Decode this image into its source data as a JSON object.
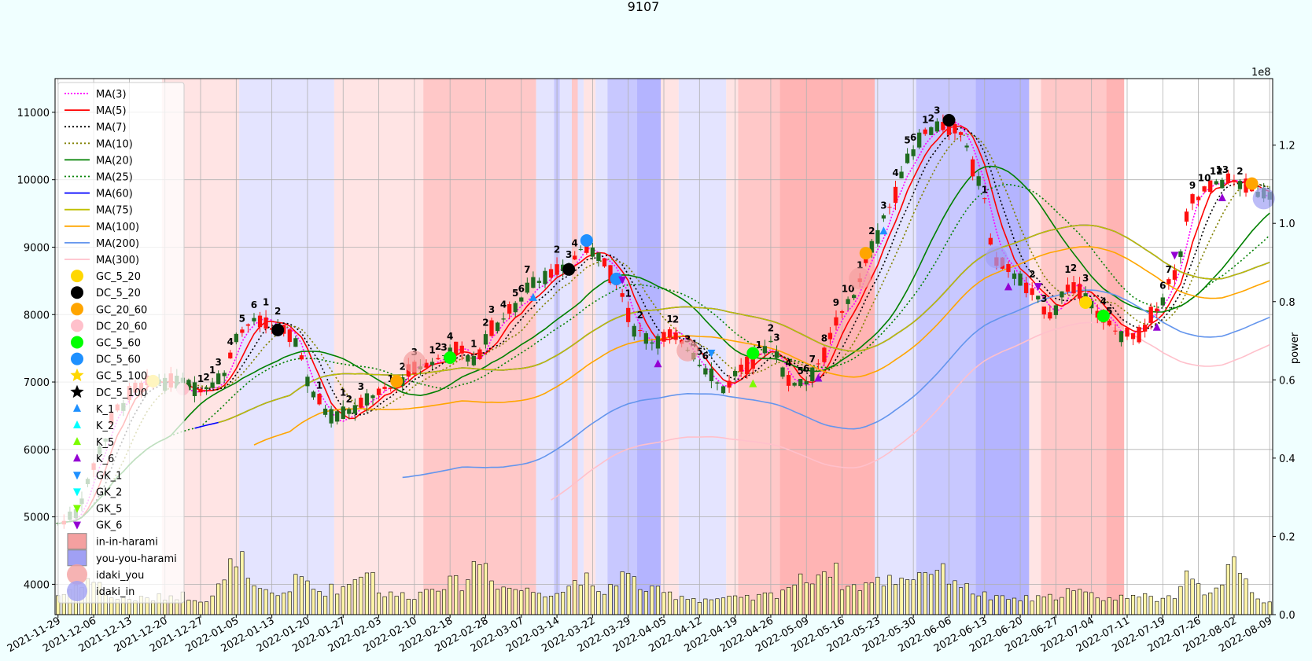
{
  "chart_data": {
    "type": "candlestick",
    "title": "9107",
    "ylabel_right": "power",
    "right_axis_multiplier": "1e8",
    "ylim": [
      3550,
      11500
    ],
    "ylim_right": [
      0,
      1.37
    ],
    "yticks": [
      "4000",
      "5000",
      "6000",
      "7000",
      "8000",
      "9000",
      "10000",
      "11000"
    ],
    "yticks_right": [
      "0.0",
      "0.2",
      "0.4",
      "0.6",
      "0.8",
      "1.0",
      "1.2"
    ],
    "x_labels": [
      "2021-11-29",
      "2021-12-06",
      "2021-12-13",
      "2021-12-20",
      "2021-12-27",
      "2022-01-05",
      "2022-01-13",
      "2022-01-20",
      "2022-01-27",
      "2022-02-03",
      "2022-02-10",
      "2022-02-18",
      "2022-02-28",
      "2022-03-07",
      "2022-03-14",
      "2022-03-22",
      "2022-03-29",
      "2022-04-05",
      "2022-04-12",
      "2022-04-19",
      "2022-04-26",
      "2022-05-09",
      "2022-05-16",
      "2022-05-23",
      "2022-05-30",
      "2022-06-06",
      "2022-06-13",
      "2022-06-20",
      "2022-06-27",
      "2022-07-04",
      "2022-07-11",
      "2022-07-19",
      "2022-07-26",
      "2022-08-02",
      "2022-08-09"
    ],
    "close_anchors": [
      [
        0,
        4900
      ],
      [
        3,
        5050
      ],
      [
        5,
        5500
      ],
      [
        7,
        6000
      ],
      [
        10,
        6600
      ],
      [
        13,
        6900
      ],
      [
        16,
        7000
      ],
      [
        20,
        7000
      ],
      [
        24,
        6900
      ],
      [
        28,
        7100
      ],
      [
        30,
        7700
      ],
      [
        33,
        7900
      ],
      [
        37,
        7800
      ],
      [
        40,
        7600
      ],
      [
        43,
        6800
      ],
      [
        46,
        6500
      ],
      [
        50,
        6600
      ],
      [
        53,
        6800
      ],
      [
        56,
        6900
      ],
      [
        60,
        7200
      ],
      [
        63,
        7300
      ],
      [
        67,
        7500
      ],
      [
        70,
        7300
      ],
      [
        73,
        7800
      ],
      [
        77,
        8100
      ],
      [
        80,
        8500
      ],
      [
        83,
        8600
      ],
      [
        86,
        8700
      ],
      [
        88,
        9000
      ],
      [
        91,
        8900
      ],
      [
        94,
        8500
      ],
      [
        97,
        7800
      ],
      [
        100,
        7600
      ],
      [
        103,
        7700
      ],
      [
        106,
        7500
      ],
      [
        109,
        7200
      ],
      [
        112,
        6900
      ],
      [
        115,
        7200
      ],
      [
        117,
        7300
      ],
      [
        120,
        7600
      ],
      [
        123,
        7000
      ],
      [
        126,
        7000
      ],
      [
        129,
        7400
      ],
      [
        131,
        7900
      ],
      [
        134,
        8300
      ],
      [
        137,
        9000
      ],
      [
        140,
        9600
      ],
      [
        143,
        10300
      ],
      [
        146,
        10700
      ],
      [
        149,
        10800
      ],
      [
        152,
        10700
      ],
      [
        155,
        10000
      ],
      [
        158,
        8800
      ],
      [
        161,
        8600
      ],
      [
        164,
        8300
      ],
      [
        167,
        8000
      ],
      [
        170,
        8400
      ],
      [
        173,
        8300
      ],
      [
        176,
        7900
      ],
      [
        179,
        7700
      ],
      [
        182,
        7700
      ],
      [
        185,
        8100
      ],
      [
        188,
        8600
      ],
      [
        191,
        9700
      ],
      [
        194,
        9900
      ],
      [
        197,
        10000
      ],
      [
        200,
        9900
      ],
      [
        203,
        9800
      ]
    ],
    "volume_anchors": [
      [
        0,
        0.05
      ],
      [
        5,
        0.09
      ],
      [
        10,
        0.04
      ],
      [
        15,
        0.04
      ],
      [
        20,
        0.05
      ],
      [
        25,
        0.04
      ],
      [
        28,
        0.08
      ],
      [
        30,
        0.16
      ],
      [
        33,
        0.06
      ],
      [
        37,
        0.05
      ],
      [
        41,
        0.09
      ],
      [
        44,
        0.06
      ],
      [
        48,
        0.07
      ],
      [
        52,
        0.12
      ],
      [
        55,
        0.05
      ],
      [
        60,
        0.05
      ],
      [
        64,
        0.08
      ],
      [
        68,
        0.08
      ],
      [
        71,
        0.14
      ],
      [
        75,
        0.07
      ],
      [
        80,
        0.06
      ],
      [
        85,
        0.06
      ],
      [
        88,
        0.1
      ],
      [
        91,
        0.05
      ],
      [
        95,
        0.1
      ],
      [
        100,
        0.06
      ],
      [
        104,
        0.05
      ],
      [
        108,
        0.04
      ],
      [
        112,
        0.04
      ],
      [
        116,
        0.04
      ],
      [
        120,
        0.05
      ],
      [
        124,
        0.08
      ],
      [
        127,
        0.1
      ],
      [
        130,
        0.12
      ],
      [
        133,
        0.07
      ],
      [
        137,
        0.08
      ],
      [
        140,
        0.09
      ],
      [
        144,
        0.1
      ],
      [
        147,
        0.12
      ],
      [
        150,
        0.1
      ],
      [
        154,
        0.06
      ],
      [
        158,
        0.04
      ],
      [
        162,
        0.04
      ],
      [
        166,
        0.04
      ],
      [
        170,
        0.06
      ],
      [
        174,
        0.05
      ],
      [
        178,
        0.04
      ],
      [
        182,
        0.06
      ],
      [
        185,
        0.03
      ],
      [
        188,
        0.05
      ],
      [
        190,
        0.12
      ],
      [
        193,
        0.06
      ],
      [
        196,
        0.09
      ],
      [
        198,
        0.12
      ],
      [
        201,
        0.07
      ],
      [
        203,
        0.03
      ]
    ],
    "moving_averages": [
      {
        "name": "MA(3)",
        "color": "#ff00ff",
        "dash": "2,2",
        "window": 3
      },
      {
        "name": "MA(5)",
        "color": "#ff0000",
        "dash": "",
        "window": 5
      },
      {
        "name": "MA(7)",
        "color": "#000000",
        "dash": "2,3",
        "window": 7
      },
      {
        "name": "MA(10)",
        "color": "#808000",
        "dash": "2,3",
        "window": 10
      },
      {
        "name": "MA(20)",
        "color": "#008000",
        "dash": "",
        "window": 20
      },
      {
        "name": "MA(25)",
        "color": "#008000",
        "dash": "2,3",
        "window": 25
      },
      {
        "name": "MA(60)",
        "color": "#0000ff",
        "dash": "",
        "window": 60
      },
      {
        "name": "MA(75)",
        "color": "#bfbf00",
        "dash": "",
        "window": 75
      },
      {
        "name": "MA(100)",
        "color": "#ffa500",
        "dash": "",
        "window": 100
      },
      {
        "name": "MA(200)",
        "color": "#6495ed",
        "dash": "",
        "window": 200
      },
      {
        "name": "MA(300)",
        "color": "#ffc0cb",
        "dash": "",
        "window": 300
      }
    ],
    "legend": [
      {
        "label": "MA(3)",
        "kind": "line",
        "color": "#ff00ff",
        "dash": "2,2"
      },
      {
        "label": "MA(5)",
        "kind": "line",
        "color": "#ff0000",
        "dash": ""
      },
      {
        "label": "MA(7)",
        "kind": "line",
        "color": "#000000",
        "dash": "2,3"
      },
      {
        "label": "MA(10)",
        "kind": "line",
        "color": "#808000",
        "dash": "2,3"
      },
      {
        "label": "MA(20)",
        "kind": "line",
        "color": "#008000",
        "dash": ""
      },
      {
        "label": "MA(25)",
        "kind": "line",
        "color": "#008000",
        "dash": "2,3"
      },
      {
        "label": "MA(60)",
        "kind": "line",
        "color": "#0000ff",
        "dash": ""
      },
      {
        "label": "MA(75)",
        "kind": "line",
        "color": "#bfbf00",
        "dash": ""
      },
      {
        "label": "MA(100)",
        "kind": "line",
        "color": "#ffa500",
        "dash": ""
      },
      {
        "label": "MA(200)",
        "kind": "line",
        "color": "#6495ed",
        "dash": ""
      },
      {
        "label": "MA(300)",
        "kind": "line",
        "color": "#ffc0cb",
        "dash": ""
      },
      {
        "label": "GC_5_20",
        "kind": "circle",
        "color": "#ffd700"
      },
      {
        "label": "DC_5_20",
        "kind": "circle",
        "color": "#000000"
      },
      {
        "label": "GC_20_60",
        "kind": "circle",
        "color": "#ffa500"
      },
      {
        "label": "DC_20_60",
        "kind": "circle",
        "color": "#ffc0cb"
      },
      {
        "label": "GC_5_60",
        "kind": "circle",
        "color": "#00ff00"
      },
      {
        "label": "DC_5_60",
        "kind": "circle",
        "color": "#1e90ff"
      },
      {
        "label": "GC_5_100",
        "kind": "star",
        "color": "#ffd700"
      },
      {
        "label": "DC_5_100",
        "kind": "star",
        "color": "#000000"
      },
      {
        "label": "K_1",
        "kind": "tri-up",
        "color": "#1e90ff"
      },
      {
        "label": "K_2",
        "kind": "tri-up",
        "color": "#00ffff"
      },
      {
        "label": "K_5",
        "kind": "tri-up",
        "color": "#7cfc00"
      },
      {
        "label": "K_6",
        "kind": "tri-up",
        "color": "#9400d3"
      },
      {
        "label": "GK_1",
        "kind": "tri-down",
        "color": "#1e90ff"
      },
      {
        "label": "GK_2",
        "kind": "tri-down",
        "color": "#00ffff"
      },
      {
        "label": "GK_5",
        "kind": "tri-down",
        "color": "#7cfc00"
      },
      {
        "label": "GK_6",
        "kind": "tri-down",
        "color": "#9400d3"
      },
      {
        "label": "in-in-harami",
        "kind": "square",
        "color": "#f4a0a0"
      },
      {
        "label": "you-you-harami",
        "kind": "square",
        "color": "#a0a0f4"
      },
      {
        "label": "idaki_you",
        "kind": "bigcircle",
        "color": "#f4a0a0"
      },
      {
        "label": "idaki_in",
        "kind": "bigcircle",
        "color": "#a0a0f4"
      }
    ],
    "shading": [
      [
        0,
        18,
        "#ffffff"
      ],
      [
        18,
        31,
        "#ffe4e4"
      ],
      [
        31,
        47,
        "#e4e4ff"
      ],
      [
        47,
        62,
        "#ffe4e4"
      ],
      [
        62,
        81,
        "#ffc8c8"
      ],
      [
        81,
        84,
        "#e4e4ff"
      ],
      [
        84,
        85,
        "#c8c8ff"
      ],
      [
        85,
        87,
        "#e4e4ff"
      ],
      [
        87,
        88,
        "#ffc8c8"
      ],
      [
        88,
        89,
        "#e4e4ff"
      ],
      [
        89,
        91,
        "#ffe4e4"
      ],
      [
        91,
        93,
        "#e4e4ff"
      ],
      [
        93,
        98,
        "#c8c8ff"
      ],
      [
        98,
        102,
        "#b4b4ff"
      ],
      [
        102,
        105,
        "#ffe4e4"
      ],
      [
        105,
        113,
        "#e4e4ff"
      ],
      [
        113,
        115,
        "#ffe4e4"
      ],
      [
        115,
        122,
        "#ffc8c8"
      ],
      [
        122,
        138,
        "#ffb4b4"
      ],
      [
        138,
        145,
        "#e4e4ff"
      ],
      [
        145,
        155,
        "#c8c8ff"
      ],
      [
        155,
        164,
        "#b4b4ff"
      ],
      [
        164,
        166,
        "#ffe4e4"
      ],
      [
        166,
        177,
        "#ffc8c8"
      ],
      [
        177,
        180,
        "#ffb4b4"
      ]
    ],
    "count_labels": [
      [
        24,
        "1"
      ],
      [
        25,
        "2"
      ],
      [
        26,
        "1"
      ],
      [
        27,
        "3"
      ],
      [
        29,
        "4"
      ],
      [
        31,
        "5"
      ],
      [
        33,
        "6"
      ],
      [
        35,
        "1"
      ],
      [
        37,
        "2"
      ],
      [
        44,
        "1"
      ],
      [
        48,
        "1"
      ],
      [
        49,
        "2"
      ],
      [
        51,
        "3"
      ],
      [
        56,
        "1"
      ],
      [
        58,
        "2"
      ],
      [
        60,
        "3"
      ],
      [
        63,
        "1"
      ],
      [
        64,
        "2"
      ],
      [
        65,
        "3"
      ],
      [
        66,
        "4"
      ],
      [
        70,
        "1"
      ],
      [
        72,
        "2"
      ],
      [
        73,
        "3"
      ],
      [
        75,
        "4"
      ],
      [
        77,
        "5"
      ],
      [
        78,
        "6"
      ],
      [
        79,
        "7"
      ],
      [
        84,
        "2"
      ],
      [
        86,
        "3"
      ],
      [
        87,
        "4"
      ],
      [
        96,
        "1"
      ],
      [
        98,
        "2"
      ],
      [
        103,
        "1"
      ],
      [
        104,
        "2"
      ],
      [
        106,
        "3"
      ],
      [
        107,
        "4"
      ],
      [
        108,
        "5"
      ],
      [
        109,
        "6"
      ],
      [
        118,
        "1"
      ],
      [
        120,
        "2"
      ],
      [
        121,
        "3"
      ],
      [
        123,
        "4"
      ],
      [
        125,
        "5"
      ],
      [
        126,
        "6"
      ],
      [
        127,
        "7"
      ],
      [
        129,
        "8"
      ],
      [
        131,
        "9"
      ],
      [
        133,
        "10"
      ],
      [
        135,
        "1"
      ],
      [
        137,
        "2"
      ],
      [
        139,
        "3"
      ],
      [
        141,
        "4"
      ],
      [
        143,
        "5"
      ],
      [
        144,
        "6"
      ],
      [
        146,
        "1"
      ],
      [
        147,
        "2"
      ],
      [
        148,
        "3"
      ],
      [
        156,
        "1"
      ],
      [
        164,
        "2"
      ],
      [
        166,
        "3"
      ],
      [
        170,
        "1"
      ],
      [
        171,
        "2"
      ],
      [
        173,
        "3"
      ],
      [
        176,
        "4"
      ],
      [
        177,
        "5"
      ],
      [
        186,
        "6"
      ],
      [
        187,
        "7"
      ],
      [
        191,
        "9"
      ],
      [
        193,
        "10"
      ],
      [
        195,
        "12"
      ],
      [
        196,
        "13"
      ],
      [
        199,
        "2"
      ]
    ],
    "markers": [
      [
        16,
        "circle",
        "#ffd700"
      ],
      [
        21,
        "circle",
        "#ffc0cb"
      ],
      [
        37,
        "circle",
        "#000000"
      ],
      [
        57,
        "circle",
        "#ffa500"
      ],
      [
        66,
        "circle",
        "#00ff00"
      ],
      [
        86,
        "circle",
        "#000000"
      ],
      [
        89,
        "circle",
        "#1e90ff"
      ],
      [
        94,
        "circle",
        "#1e90ff"
      ],
      [
        117,
        "circle",
        "#00ff00"
      ],
      [
        136,
        "circle",
        "#ffa500"
      ],
      [
        150,
        "circle",
        "#000000"
      ],
      [
        173,
        "circle",
        "#ffd700"
      ],
      [
        176,
        "circle",
        "#00ff00"
      ],
      [
        201,
        "circle",
        "#ffa500"
      ],
      [
        60,
        "bigcircle",
        "#f4a0a0"
      ],
      [
        135,
        "bigcircle",
        "#f4a0a0"
      ],
      [
        158,
        "bigcircle",
        "#a0a0f4"
      ],
      [
        203,
        "bigcircle",
        "#a0a0f4"
      ],
      [
        106,
        "bigcircle",
        "#f4a0a0"
      ],
      [
        80,
        "tri-up",
        "#1e90ff"
      ],
      [
        101,
        "tri-up",
        "#9400d3"
      ],
      [
        117,
        "tri-up",
        "#7cfc00"
      ],
      [
        128,
        "tri-up",
        "#9400d3"
      ],
      [
        139,
        "tri-up",
        "#1e90ff"
      ],
      [
        160,
        "tri-up",
        "#9400d3"
      ],
      [
        185,
        "tri-up",
        "#9400d3"
      ],
      [
        196,
        "tri-up",
        "#9400d3"
      ],
      [
        95,
        "tri-down",
        "#9400d3"
      ],
      [
        110,
        "tri-down",
        "#1e90ff"
      ],
      [
        165,
        "tri-down",
        "#9400d3"
      ],
      [
        188,
        "tri-down",
        "#9400d3"
      ]
    ]
  }
}
